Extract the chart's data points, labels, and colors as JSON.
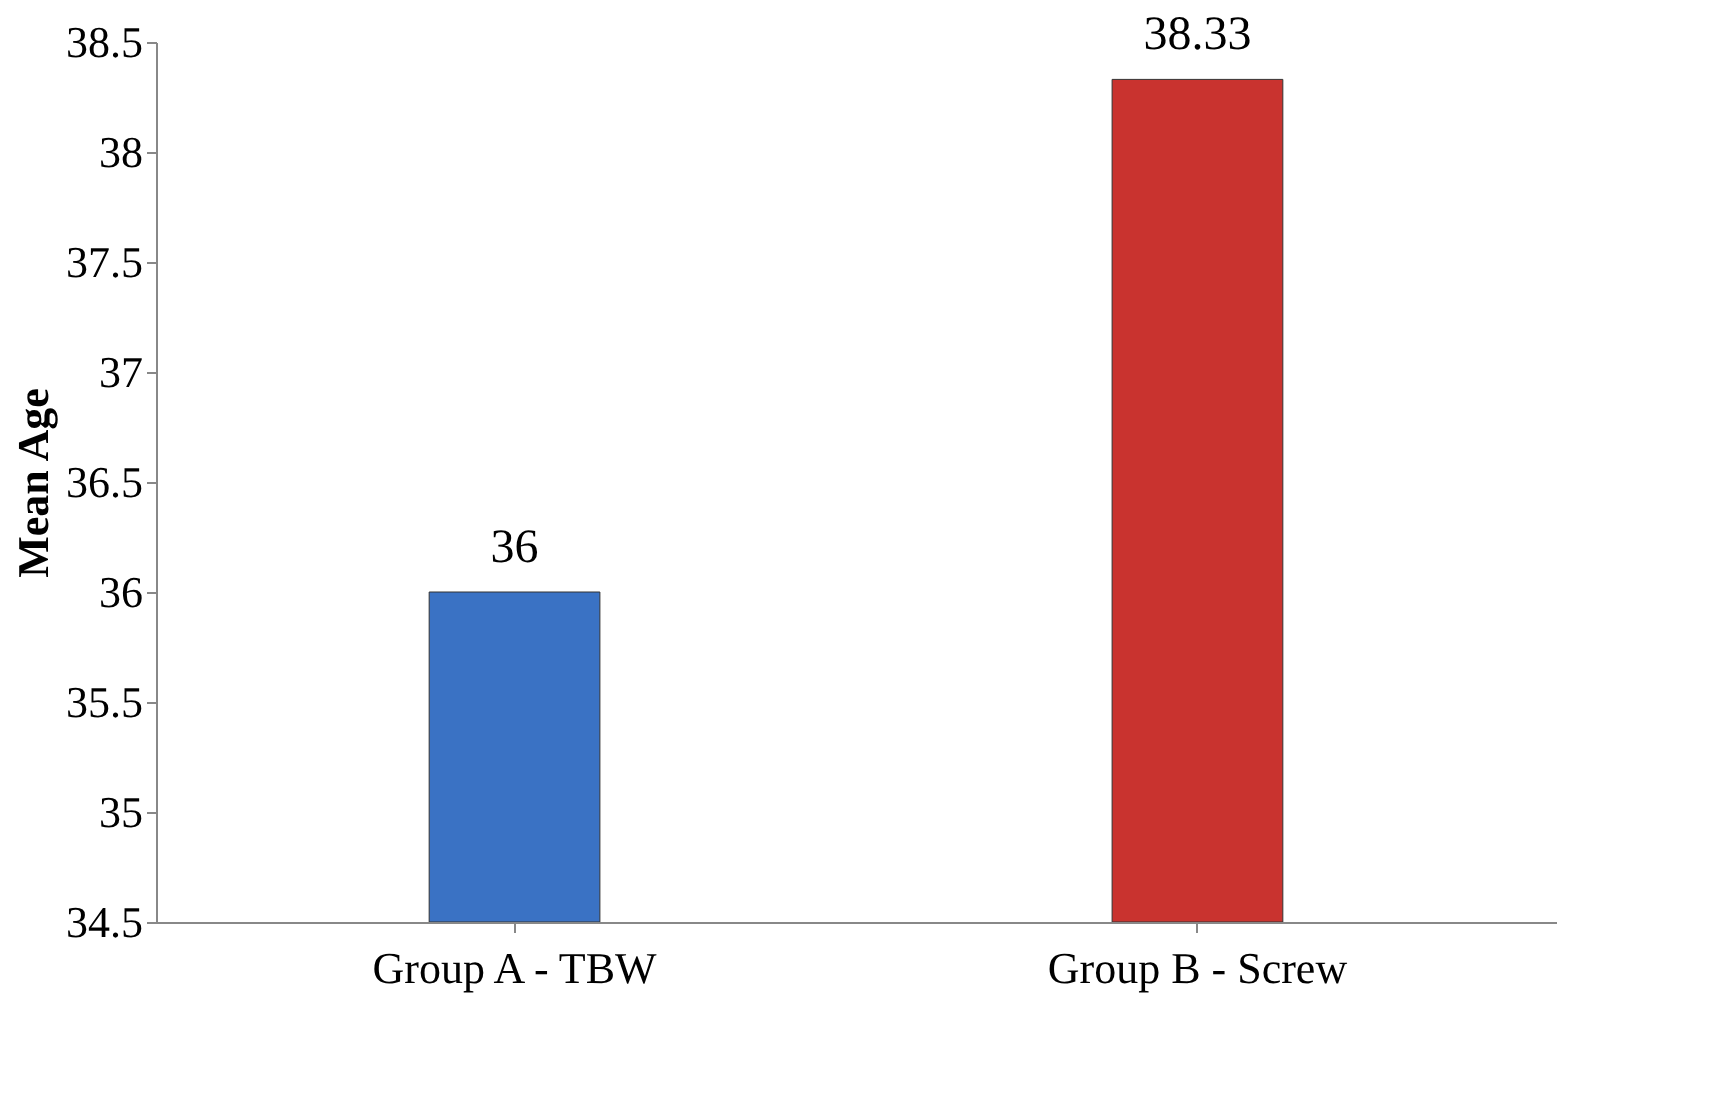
{
  "chart_data": {
    "type": "bar",
    "ylabel": "Mean Age",
    "categories": [
      "Group A - TBW",
      "Group B - Screw"
    ],
    "values": [
      36,
      38.33
    ],
    "colors": [
      "#3a72c4",
      "#c9332f"
    ],
    "ylim": [
      34.5,
      38.5
    ],
    "yticks": [
      34.5,
      35,
      35.5,
      36,
      36.5,
      37,
      37.5,
      38,
      38.5
    ],
    "data_labels": true,
    "grid": false
  }
}
